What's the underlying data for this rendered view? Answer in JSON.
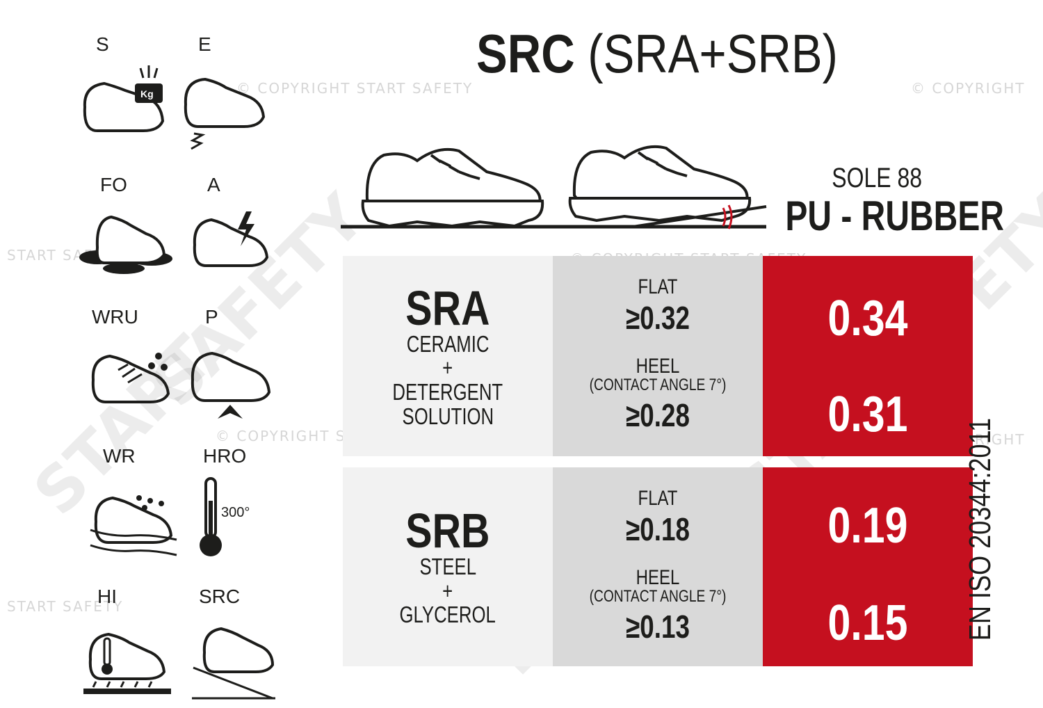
{
  "title": {
    "bold": "SRC",
    "rest": "(SRA+SRB)"
  },
  "icons": [
    {
      "label": "S",
      "name": "s-toecap-icon"
    },
    {
      "label": "E",
      "name": "e-energy-absorbing-heel-icon"
    },
    {
      "label": "FO",
      "name": "fo-fuel-oil-resistant-icon"
    },
    {
      "label": "A",
      "name": "a-antistatic-icon"
    },
    {
      "label": "WRU",
      "name": "wru-water-resistant-upper-icon"
    },
    {
      "label": "P",
      "name": "p-penetration-resistant-icon"
    },
    {
      "label": "WR",
      "name": "wr-water-resistant-icon"
    },
    {
      "label": "HRO",
      "name": "hro-heat-resistant-outsole-icon"
    },
    {
      "label": "HI",
      "name": "hi-heat-insulation-icon"
    },
    {
      "label": "SRC",
      "name": "src-slip-resistance-icon"
    }
  ],
  "hro_temp": "300°",
  "sole": {
    "label": "SOLE 88",
    "type": "PU - RUBBER"
  },
  "standard": "EN ISO 20344:2011",
  "colors": {
    "accent": "#c5101f",
    "light": "#f2f2f2",
    "mid": "#d9d9d9",
    "text": "#1d1d1b"
  },
  "watermarks": {
    "copyright": "© COPYRIGHT START SAFETY",
    "copyright_short": "© COPYRIGHT",
    "start_safety": "START SAFETY",
    "safety": "SAFETY",
    "start": "START"
  },
  "rows": [
    {
      "code": "SRA",
      "surface": "CERAMIC",
      "plus": "+",
      "medium_line1": "DETERGENT",
      "medium_line2": "SOLUTION",
      "flat_label": "FLAT",
      "flat_req": "≥0.32",
      "heel_label": "HEEL",
      "heel_note": "(CONTACT ANGLE 7°)",
      "heel_req": "≥0.28",
      "flat_value": "0.34",
      "heel_value": "0.31"
    },
    {
      "code": "SRB",
      "surface": "STEEL",
      "plus": "+",
      "medium_line1": "GLYCEROL",
      "medium_line2": "",
      "flat_label": "FLAT",
      "flat_req": "≥0.18",
      "heel_label": "HEEL",
      "heel_note": "(CONTACT ANGLE 7°)",
      "heel_req": "≥0.13",
      "flat_value": "0.19",
      "heel_value": "0.15"
    }
  ]
}
